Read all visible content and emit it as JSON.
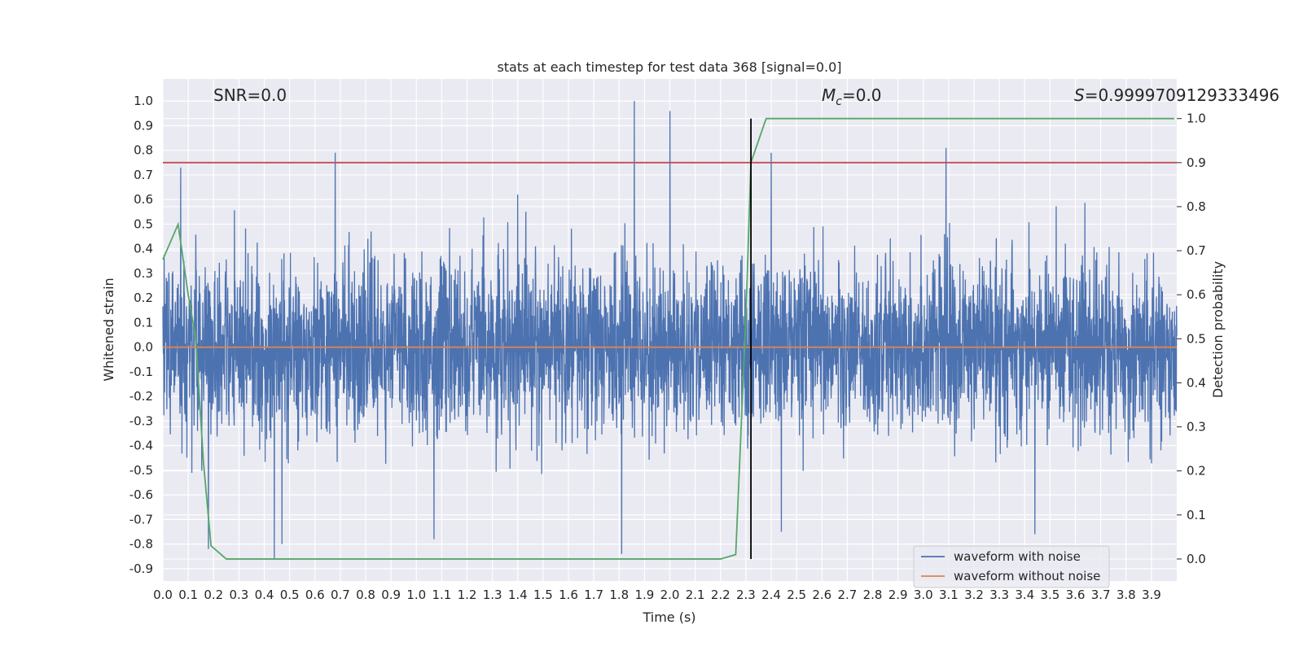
{
  "chart_data": {
    "type": "line",
    "title": "stats at each timestep for test data 368 [signal=0.0]",
    "xlabel": "Time (s)",
    "ylabel": "Whitened strain",
    "y2label": "Detection probability",
    "xlim": [
      0.0,
      4.0
    ],
    "ylim": [
      -0.95,
      1.09
    ],
    "y2lim": [
      -0.05,
      1.09
    ],
    "xticks": [
      "0.0",
      "0.1",
      "0.2",
      "0.3",
      "0.4",
      "0.5",
      "0.6",
      "0.7",
      "0.8",
      "0.9",
      "1.0",
      "1.1",
      "1.2",
      "1.3",
      "1.4",
      "1.5",
      "1.6",
      "1.7",
      "1.8",
      "1.9",
      "2.0",
      "2.1",
      "2.2",
      "2.3",
      "2.4",
      "2.5",
      "2.6",
      "2.7",
      "2.8",
      "2.9",
      "3.0",
      "3.1",
      "3.2",
      "3.3",
      "3.4",
      "3.5",
      "3.6",
      "3.7",
      "3.8",
      "3.9"
    ],
    "yticks": [
      "1.0",
      "0.9",
      "0.8",
      "0.7",
      "0.6",
      "0.5",
      "0.4",
      "0.3",
      "0.2",
      "0.1",
      "0.0",
      "-0.1",
      "-0.2",
      "-0.3",
      "-0.4",
      "-0.5",
      "-0.6",
      "-0.7",
      "-0.8",
      "-0.9"
    ],
    "y2ticks": [
      "1.0",
      "0.9",
      "0.8",
      "0.7",
      "0.6",
      "0.5",
      "0.4",
      "0.3",
      "0.2",
      "0.1",
      "0.0"
    ],
    "annotations": {
      "snr": "SNR=0.0",
      "mc_symbol": "M",
      "mc_sub": "c",
      "mc_value": "=0.0",
      "s_symbol": "S",
      "s_value": "=0.9999709129333496"
    },
    "threshold_probability": 0.9,
    "detection_time": 2.32,
    "series": [
      {
        "name": "waveform with noise",
        "color": "#4c72b0",
        "axis": "left",
        "kind": "noisy",
        "n_samples": 4096,
        "spread": 0.25,
        "max": 1.0,
        "min": -0.86,
        "peaks": [
          [
            0.07,
            0.73
          ],
          [
            0.68,
            0.79
          ],
          [
            1.4,
            0.62
          ],
          [
            1.86,
            1.0
          ],
          [
            2.0,
            0.96
          ],
          [
            2.4,
            0.79
          ],
          [
            3.09,
            0.81
          ]
        ],
        "troughs": [
          [
            0.18,
            -0.82
          ],
          [
            0.44,
            -0.86
          ],
          [
            0.47,
            -0.8
          ],
          [
            1.07,
            -0.78
          ],
          [
            1.81,
            -0.84
          ],
          [
            2.44,
            -0.75
          ],
          [
            3.44,
            -0.76
          ]
        ]
      },
      {
        "name": "waveform without noise",
        "color": "#dd8452",
        "axis": "left",
        "x": [
          0.0,
          4.0
        ],
        "values": [
          0.0,
          0.0
        ]
      },
      {
        "name": "detection probability",
        "color": "#55a868",
        "axis": "right",
        "x": [
          0.0,
          0.06,
          0.1,
          0.13,
          0.16,
          0.19,
          0.25,
          0.44,
          1.0,
          1.5,
          2.0,
          2.2,
          2.26,
          2.3,
          2.32,
          2.38,
          2.5,
          3.0,
          3.5,
          3.99
        ],
        "values": [
          0.68,
          0.76,
          0.6,
          0.5,
          0.22,
          0.03,
          0.0,
          0.0,
          0.0,
          0.0,
          0.0,
          0.0,
          0.01,
          0.55,
          0.9,
          1.0,
          1.0,
          1.0,
          1.0,
          1.0
        ]
      },
      {
        "name": "threshold",
        "color": "#c44e52",
        "axis": "right",
        "x": [
          0.0,
          4.0
        ],
        "values": [
          0.9,
          0.9
        ]
      }
    ],
    "legend": {
      "position": "lower-right",
      "entries": [
        {
          "label": "waveform with noise",
          "color": "#4c72b0"
        },
        {
          "label": "waveform without noise",
          "color": "#dd8452"
        }
      ]
    },
    "style": {
      "plot_background": "#eaeaf2",
      "grid_color": "#ffffff",
      "detection_line_color": "#000000"
    }
  }
}
